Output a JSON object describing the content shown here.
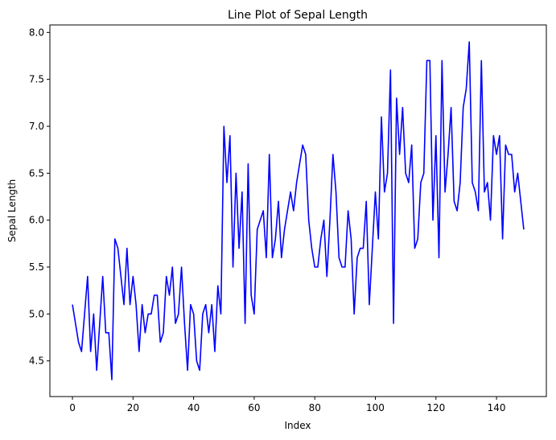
{
  "chart_data": {
    "type": "line",
    "title": "Line Plot of Sepal Length",
    "xlabel": "Index",
    "ylabel": "Sepal Length",
    "xlim": [
      -7.45,
      156.45
    ],
    "ylim": [
      4.12,
      8.08
    ],
    "xticks": [
      0,
      20,
      40,
      60,
      80,
      100,
      120,
      140
    ],
    "yticks": [
      4.5,
      5.0,
      5.5,
      6.0,
      6.5,
      7.0,
      7.5,
      8.0
    ],
    "xtick_labels": [
      "0",
      "20",
      "40",
      "60",
      "80",
      "100",
      "120",
      "140"
    ],
    "ytick_labels": [
      "4.5",
      "5.0",
      "5.5",
      "6.0",
      "6.5",
      "7.0",
      "7.5",
      "8.0"
    ],
    "grid": false,
    "line_color": "#0000ff",
    "series": [
      {
        "values": [
          5.1,
          4.9,
          4.7,
          4.6,
          5.0,
          5.4,
          4.6,
          5.0,
          4.4,
          4.9,
          5.4,
          4.8,
          4.8,
          4.3,
          5.8,
          5.7,
          5.4,
          5.1,
          5.7,
          5.1,
          5.4,
          5.1,
          4.6,
          5.1,
          4.8,
          5.0,
          5.0,
          5.2,
          5.2,
          4.7,
          4.8,
          5.4,
          5.2,
          5.5,
          4.9,
          5.0,
          5.5,
          4.9,
          4.4,
          5.1,
          5.0,
          4.5,
          4.4,
          5.0,
          5.1,
          4.8,
          5.1,
          4.6,
          5.3,
          5.0,
          7.0,
          6.4,
          6.9,
          5.5,
          6.5,
          5.7,
          6.3,
          4.9,
          6.6,
          5.2,
          5.0,
          5.9,
          6.0,
          6.1,
          5.6,
          6.7,
          5.6,
          5.8,
          6.2,
          5.6,
          5.9,
          6.1,
          6.3,
          6.1,
          6.4,
          6.6,
          6.8,
          6.7,
          6.0,
          5.7,
          5.5,
          5.5,
          5.8,
          6.0,
          5.4,
          6.0,
          6.7,
          6.3,
          5.6,
          5.5,
          5.5,
          6.1,
          5.8,
          5.0,
          5.6,
          5.7,
          5.7,
          6.2,
          5.1,
          5.7,
          6.3,
          5.8,
          7.1,
          6.3,
          6.5,
          7.6,
          4.9,
          7.3,
          6.7,
          7.2,
          6.5,
          6.4,
          6.8,
          5.7,
          5.8,
          6.4,
          6.5,
          7.7,
          7.7,
          6.0,
          6.9,
          5.6,
          7.7,
          6.3,
          6.7,
          7.2,
          6.2,
          6.1,
          6.4,
          7.2,
          7.4,
          7.9,
          6.4,
          6.3,
          6.1,
          7.7,
          6.3,
          6.4,
          6.0,
          6.9,
          6.7,
          6.9,
          5.8,
          6.8,
          6.7,
          6.7,
          6.3,
          6.5,
          6.2,
          5.9
        ]
      }
    ]
  }
}
